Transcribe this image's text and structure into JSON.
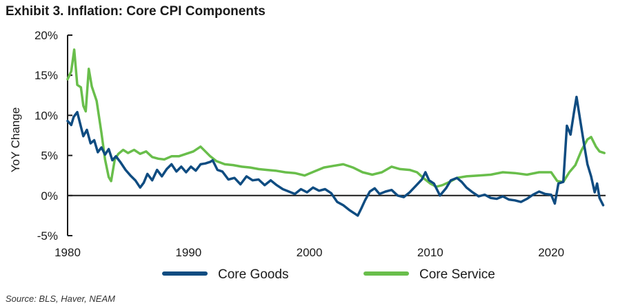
{
  "title": "Exhibit 3. Inflation: Core CPI Components",
  "source": "Source: BLS, Haver, NEAM",
  "chart_data": {
    "type": "line",
    "ylabel": "YoY Change",
    "xlabel": "",
    "xlim": [
      1980,
      2024.5
    ],
    "ylim": [
      -5,
      20
    ],
    "xticks": [
      1980,
      1990,
      2000,
      2010,
      2020
    ],
    "xtick_labels": [
      "1980",
      "1990",
      "2000",
      "2010",
      "2020"
    ],
    "yticks": [
      -5,
      0,
      5,
      10,
      15,
      20
    ],
    "ytick_labels": [
      "-5%",
      "0%",
      "5%",
      "10%",
      "15%",
      "20%"
    ],
    "legend": [
      "Core Goods",
      "Core Service"
    ],
    "legend_position": "bottom",
    "series": [
      {
        "name": "Core Goods",
        "color": "#0f4c81",
        "points": [
          [
            1980.0,
            9.3
          ],
          [
            1980.3,
            8.8
          ],
          [
            1980.5,
            9.8
          ],
          [
            1980.8,
            10.4
          ],
          [
            1981.0,
            9.2
          ],
          [
            1981.3,
            7.4
          ],
          [
            1981.6,
            8.2
          ],
          [
            1981.9,
            6.5
          ],
          [
            1982.2,
            6.9
          ],
          [
            1982.5,
            5.4
          ],
          [
            1982.8,
            6.0
          ],
          [
            1983.1,
            5.1
          ],
          [
            1983.4,
            5.8
          ],
          [
            1983.7,
            4.4
          ],
          [
            1984.0,
            4.9
          ],
          [
            1984.4,
            4.1
          ],
          [
            1984.8,
            3.2
          ],
          [
            1985.2,
            2.5
          ],
          [
            1985.6,
            1.9
          ],
          [
            1986.0,
            1.0
          ],
          [
            1986.3,
            1.6
          ],
          [
            1986.6,
            2.7
          ],
          [
            1987.0,
            1.9
          ],
          [
            1987.4,
            3.2
          ],
          [
            1987.8,
            2.4
          ],
          [
            1988.2,
            3.3
          ],
          [
            1988.6,
            3.9
          ],
          [
            1989.0,
            3.0
          ],
          [
            1989.4,
            3.6
          ],
          [
            1989.8,
            2.9
          ],
          [
            1990.2,
            3.6
          ],
          [
            1990.6,
            3.1
          ],
          [
            1991.0,
            3.9
          ],
          [
            1991.4,
            4.0
          ],
          [
            1991.8,
            4.2
          ],
          [
            1992.0,
            4.4
          ],
          [
            1992.4,
            3.2
          ],
          [
            1992.8,
            3.0
          ],
          [
            1993.3,
            2.0
          ],
          [
            1993.8,
            2.2
          ],
          [
            1994.3,
            1.4
          ],
          [
            1994.8,
            2.4
          ],
          [
            1995.3,
            1.9
          ],
          [
            1995.8,
            2.0
          ],
          [
            1996.3,
            1.3
          ],
          [
            1996.8,
            1.9
          ],
          [
            1997.3,
            1.3
          ],
          [
            1997.8,
            0.8
          ],
          [
            1998.3,
            0.5
          ],
          [
            1998.8,
            0.2
          ],
          [
            1999.3,
            0.8
          ],
          [
            1999.8,
            0.4
          ],
          [
            2000.3,
            1.0
          ],
          [
            2000.8,
            0.6
          ],
          [
            2001.3,
            0.8
          ],
          [
            2001.8,
            0.3
          ],
          [
            2002.3,
            -0.8
          ],
          [
            2002.8,
            -1.2
          ],
          [
            2003.3,
            -1.8
          ],
          [
            2003.8,
            -2.3
          ],
          [
            2004.0,
            -2.5
          ],
          [
            2004.3,
            -1.6
          ],
          [
            2004.6,
            -0.6
          ],
          [
            2005.0,
            0.5
          ],
          [
            2005.4,
            0.9
          ],
          [
            2005.8,
            0.2
          ],
          [
            2006.3,
            0.5
          ],
          [
            2006.8,
            0.7
          ],
          [
            2007.3,
            0.0
          ],
          [
            2007.8,
            -0.2
          ],
          [
            2008.3,
            0.4
          ],
          [
            2008.8,
            1.2
          ],
          [
            2009.3,
            2.0
          ],
          [
            2009.6,
            2.9
          ],
          [
            2009.9,
            1.9
          ],
          [
            2010.3,
            1.5
          ],
          [
            2010.8,
            0.0
          ],
          [
            2011.3,
            0.9
          ],
          [
            2011.7,
            1.9
          ],
          [
            2012.2,
            2.2
          ],
          [
            2012.6,
            1.7
          ],
          [
            2013.0,
            1.0
          ],
          [
            2013.5,
            0.4
          ],
          [
            2014.0,
            -0.1
          ],
          [
            2014.5,
            0.1
          ],
          [
            2015.0,
            -0.3
          ],
          [
            2015.5,
            -0.4
          ],
          [
            2016.0,
            -0.1
          ],
          [
            2016.5,
            -0.5
          ],
          [
            2017.0,
            -0.6
          ],
          [
            2017.5,
            -0.8
          ],
          [
            2018.0,
            -0.4
          ],
          [
            2018.5,
            0.1
          ],
          [
            2019.0,
            0.5
          ],
          [
            2019.5,
            0.2
          ],
          [
            2020.0,
            0.1
          ],
          [
            2020.3,
            -1.0
          ],
          [
            2020.6,
            1.5
          ],
          [
            2021.0,
            1.7
          ],
          [
            2021.3,
            8.7
          ],
          [
            2021.6,
            7.6
          ],
          [
            2021.9,
            10.5
          ],
          [
            2022.1,
            12.3
          ],
          [
            2022.4,
            9.4
          ],
          [
            2022.7,
            6.6
          ],
          [
            2023.0,
            3.9
          ],
          [
            2023.3,
            2.4
          ],
          [
            2023.6,
            0.4
          ],
          [
            2023.8,
            1.5
          ],
          [
            2024.0,
            -0.3
          ],
          [
            2024.3,
            -1.2
          ]
        ]
      },
      {
        "name": "Core Service",
        "color": "#69be4b",
        "points": [
          [
            1980.0,
            14.5
          ],
          [
            1980.3,
            15.5
          ],
          [
            1980.55,
            18.2
          ],
          [
            1980.8,
            13.8
          ],
          [
            1981.1,
            13.5
          ],
          [
            1981.3,
            11.2
          ],
          [
            1981.5,
            10.5
          ],
          [
            1981.75,
            15.8
          ],
          [
            1982.0,
            13.6
          ],
          [
            1982.4,
            11.8
          ],
          [
            1982.8,
            7.8
          ],
          [
            1983.1,
            4.5
          ],
          [
            1983.4,
            2.3
          ],
          [
            1983.6,
            1.8
          ],
          [
            1983.9,
            4.5
          ],
          [
            1984.2,
            5.2
          ],
          [
            1984.6,
            5.7
          ],
          [
            1985.0,
            5.3
          ],
          [
            1985.5,
            5.7
          ],
          [
            1986.0,
            5.2
          ],
          [
            1986.5,
            5.5
          ],
          [
            1987.0,
            4.8
          ],
          [
            1987.5,
            4.6
          ],
          [
            1988.0,
            4.5
          ],
          [
            1988.6,
            4.9
          ],
          [
            1989.2,
            4.9
          ],
          [
            1989.8,
            5.2
          ],
          [
            1990.4,
            5.5
          ],
          [
            1991.0,
            6.1
          ],
          [
            1991.4,
            5.5
          ],
          [
            1991.8,
            4.9
          ],
          [
            1992.3,
            4.3
          ],
          [
            1993.0,
            3.9
          ],
          [
            1993.7,
            3.8
          ],
          [
            1994.4,
            3.6
          ],
          [
            1995.1,
            3.5
          ],
          [
            1995.8,
            3.3
          ],
          [
            1996.5,
            3.2
          ],
          [
            1997.2,
            3.1
          ],
          [
            1998.0,
            2.9
          ],
          [
            1998.8,
            2.8
          ],
          [
            1999.6,
            2.5
          ],
          [
            2000.4,
            3.0
          ],
          [
            2001.2,
            3.5
          ],
          [
            2002.0,
            3.7
          ],
          [
            2002.8,
            3.9
          ],
          [
            2003.6,
            3.5
          ],
          [
            2004.4,
            2.9
          ],
          [
            2005.2,
            2.6
          ],
          [
            2006.0,
            2.9
          ],
          [
            2006.8,
            3.6
          ],
          [
            2007.5,
            3.3
          ],
          [
            2008.3,
            3.2
          ],
          [
            2008.9,
            2.9
          ],
          [
            2009.5,
            2.1
          ],
          [
            2010.0,
            1.5
          ],
          [
            2010.5,
            1.1
          ],
          [
            2011.0,
            1.3
          ],
          [
            2011.6,
            1.7
          ],
          [
            2012.2,
            2.2
          ],
          [
            2013.0,
            2.4
          ],
          [
            2014.0,
            2.5
          ],
          [
            2015.0,
            2.6
          ],
          [
            2016.0,
            2.9
          ],
          [
            2017.0,
            2.8
          ],
          [
            2018.0,
            2.6
          ],
          [
            2019.0,
            2.9
          ],
          [
            2020.0,
            2.9
          ],
          [
            2020.5,
            1.8
          ],
          [
            2021.0,
            1.7
          ],
          [
            2021.5,
            2.9
          ],
          [
            2022.0,
            3.8
          ],
          [
            2022.5,
            5.6
          ],
          [
            2023.0,
            7.0
          ],
          [
            2023.3,
            7.3
          ],
          [
            2023.7,
            6.1
          ],
          [
            2024.0,
            5.5
          ],
          [
            2024.4,
            5.3
          ]
        ]
      }
    ]
  }
}
